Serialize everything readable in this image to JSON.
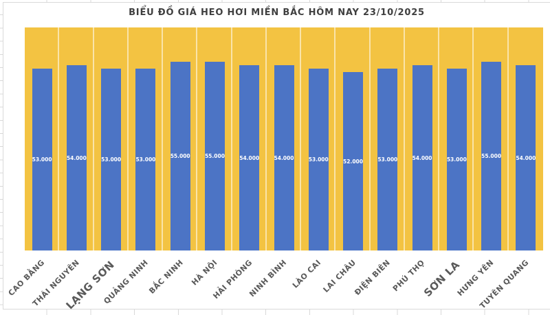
{
  "chart_data": {
    "type": "bar",
    "title": "BIỂU ĐỒ GIÁ HEO HƠI MIỀN BẮC HÔM NAY 23/10/2025",
    "categories": [
      "CAO BẰNG",
      "THÁI NGUYÊN",
      "LẠNG SƠN",
      "QUẢNG NINH",
      "BẮC NINH",
      "HÀ NỘI",
      "HẢI PHÒNG",
      "NINH BÌNH",
      "LÀO CAI",
      "LAI CHÂU",
      "ĐIỆN BIÊN",
      "PHÚ THỌ",
      "SƠN LA",
      "HƯNG YÊN",
      "TUYÊN QUANG"
    ],
    "values": [
      53000,
      54000,
      53000,
      53000,
      55000,
      55000,
      54000,
      54000,
      53000,
      52000,
      53000,
      54000,
      53000,
      55000,
      54000
    ],
    "data_labels": [
      "53.000",
      "54.000",
      "53.000",
      "53.000",
      "55.000",
      "55.000",
      "54.000",
      "54.000",
      "53.000",
      "52.000",
      "53.000",
      "54.000",
      "53.000",
      "55.000",
      "54.000"
    ],
    "emphasized_category_labels": [
      "LẠNG SƠN",
      "SƠN LA"
    ],
    "xlabel": "",
    "ylabel": "",
    "ylim": [
      0,
      65000
    ],
    "axis_tick_labels_visible": false,
    "legend_visible": false,
    "grid": "white vertical separators between categories on gold plot background",
    "colors": {
      "bar": "#4C74C5",
      "plot_background": "#F3C342",
      "data_label": "#FFFFFF",
      "category_label": "#595959",
      "title": "#3F3F3F",
      "chart_background": "#FFFFFF",
      "spreadsheet_gridline": "#D8D8D8"
    }
  }
}
